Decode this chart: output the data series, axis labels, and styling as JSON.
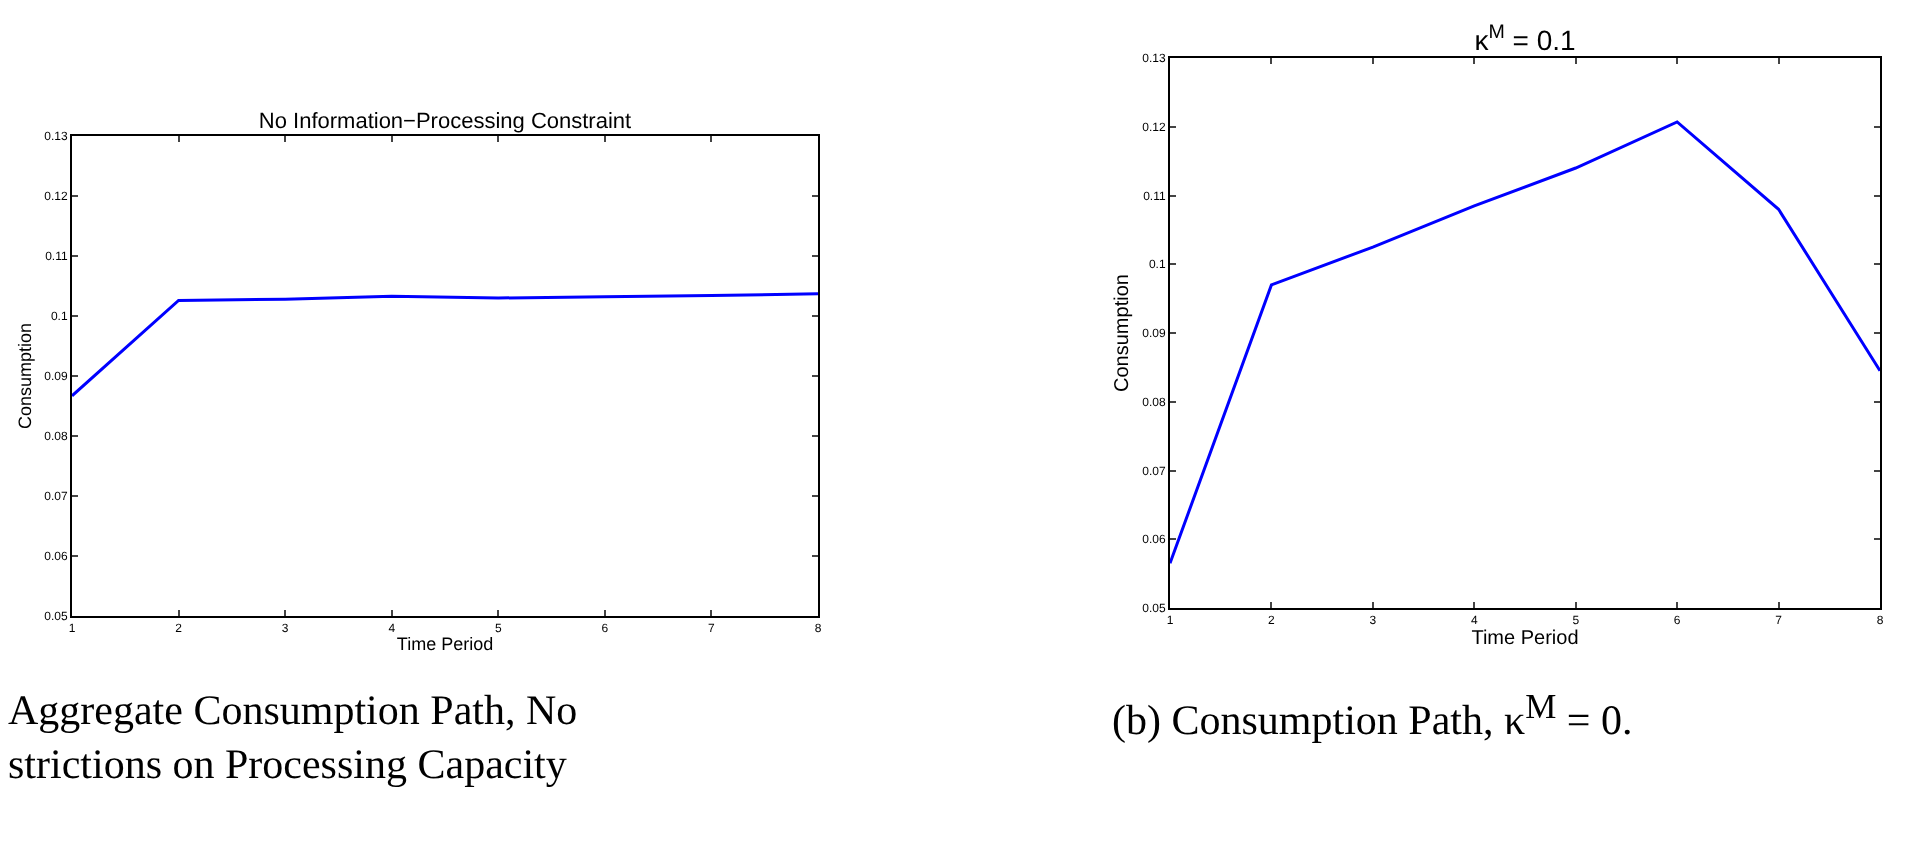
{
  "chart_data": [
    {
      "type": "line",
      "title": "No Information−Processing Constraint",
      "xlabel": "Time Period",
      "ylabel": "Consumption",
      "x": [
        1,
        2,
        3,
        4,
        5,
        6,
        7,
        8
      ],
      "series": [
        {
          "color": "#0000ff",
          "values": [
            0.0867,
            0.1026,
            0.1028,
            0.1033,
            0.103,
            0.1032,
            0.1034,
            0.1037
          ]
        }
      ],
      "xlim": [
        1,
        8
      ],
      "xticks": [
        1,
        2,
        3,
        4,
        5,
        6,
        7,
        8
      ],
      "ylim": [
        0.05,
        0.13
      ],
      "yticks": [
        0.05,
        0.06,
        0.07,
        0.08,
        0.09,
        0.1,
        0.11,
        0.12,
        0.13
      ],
      "grid": false,
      "marker": "none",
      "line_style": "solid",
      "annotations": [
        "Aggregate Consumption Path, No\nstrictions on Processing Capacity"
      ]
    },
    {
      "type": "line",
      "title": "κ$^{M}$ = 0.1",
      "xlabel": "Time Period",
      "ylabel": "Consumption",
      "x": [
        1,
        2,
        3,
        4,
        5,
        6,
        7,
        8
      ],
      "series": [
        {
          "color": "#0000ff",
          "values": [
            0.0565,
            0.097,
            0.1025,
            0.1085,
            0.114,
            0.1207,
            0.108,
            0.0845
          ]
        }
      ],
      "xlim": [
        1,
        8
      ],
      "xticks": [
        1,
        2,
        3,
        4,
        5,
        6,
        7,
        8
      ],
      "ylim": [
        0.05,
        0.13
      ],
      "yticks": [
        0.05,
        0.06,
        0.07,
        0.08,
        0.09,
        0.1,
        0.11,
        0.12,
        0.13
      ],
      "grid": false,
      "marker": "none",
      "line_style": "solid",
      "annotations": [
        "(b) Consumption Path, κ$^{M}$ = 0."
      ]
    }
  ]
}
